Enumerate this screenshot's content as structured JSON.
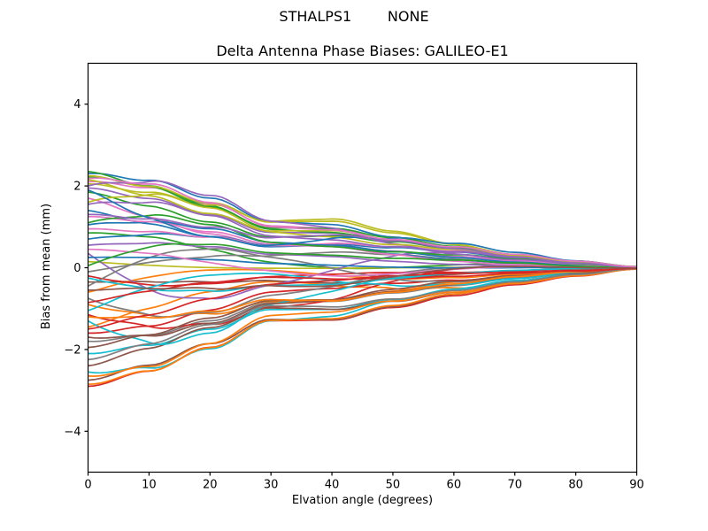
{
  "figure": {
    "suptitle": "STHALPS1        NONE",
    "background_color": "#ffffff",
    "text_color": "#000000"
  },
  "chart_data": {
    "type": "line",
    "title": "Delta Antenna Phase Biases: GALILEO-E1",
    "xlabel": "Elvation angle (degrees)",
    "ylabel": "Bias from mean (mm)",
    "xlim": [
      0,
      90
    ],
    "ylim": [
      -5,
      5
    ],
    "xticks": [
      0,
      10,
      20,
      30,
      40,
      50,
      60,
      70,
      80,
      90
    ],
    "yticks": [
      -4,
      -2,
      0,
      2,
      4
    ],
    "grid": false,
    "legend": "none",
    "axis_color": "#000000",
    "line_width": 1.7,
    "num_series": 57,
    "series_description": "57 unlabeled per-satellite delta antenna phase-bias curves; each starts at its elevation-0 bias value and converges to 0 mm at 90 degrees elevation, crossing and mixing in between",
    "start_biases_mm": [
      2.3,
      -1.45,
      0.85,
      -2.9,
      1.95,
      -0.35,
      2.1,
      -1.8,
      0.15,
      -2.55,
      1.4,
      -0.9,
      2.22,
      -1.15,
      0.55,
      -2.75,
      1.7,
      -0.1,
      2.05,
      -2.1,
      1.05,
      -0.6,
      2.35,
      -1.6,
      0.35,
      -2.4,
      1.25,
      -0.75,
      2.15,
      -1.3,
      0.7,
      -2.85,
      1.85,
      -0.2,
      1.55,
      -1.95,
      0.95,
      -0.45,
      2.25,
      -1.05,
      0.25,
      -2.65,
      1.1,
      -0.85,
      2.0,
      -1.7,
      0.45,
      -2.25,
      1.6,
      -0.25,
      1.9,
      -1.2,
      0.05,
      -1.5,
      1.3,
      -0.55,
      2.18
    ],
    "end_bias_mm": 0.0,
    "envelope": {
      "x": [
        0,
        10,
        20,
        30,
        40,
        50,
        60,
        70,
        80,
        90
      ],
      "upper_mm": [
        2.35,
        2.07,
        1.6,
        1.06,
        1.03,
        0.78,
        0.54,
        0.33,
        0.16,
        0.03
      ],
      "lower_mm": [
        -2.9,
        -2.55,
        -1.97,
        -1.31,
        -1.28,
        -0.96,
        -0.67,
        -0.41,
        -0.2,
        -0.03
      ]
    },
    "decay_profile": [
      1.0,
      0.88,
      0.68,
      0.45,
      0.44,
      0.33,
      0.23,
      0.14,
      0.07,
      0.012
    ],
    "palette": [
      "#1f77b4",
      "#ff7f0e",
      "#2ca02c",
      "#d62728",
      "#9467bd",
      "#8c564b",
      "#e377c2",
      "#7f7f7f",
      "#bcbd22",
      "#17becf"
    ],
    "seed": 20240901
  }
}
